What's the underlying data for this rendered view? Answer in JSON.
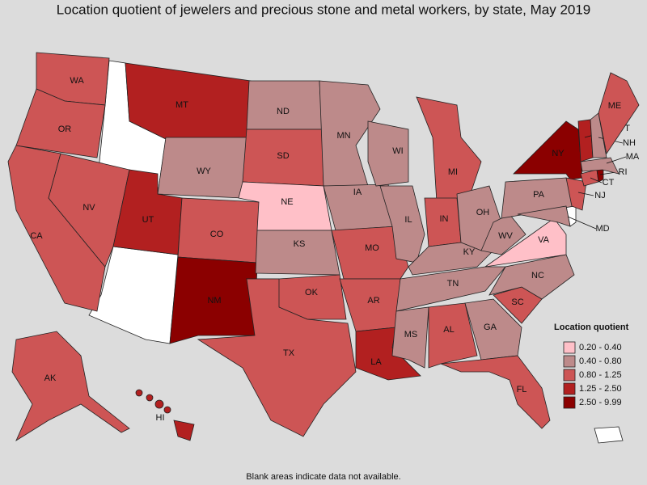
{
  "title": "Location quotient of jewelers and precious stone and metal workers, by state, May 2019",
  "footnote": "Blank areas indicate data not available.",
  "legend": {
    "title": "Location quotient",
    "items": [
      {
        "label": "0.20 - 0.40",
        "color": "#ffc0c8"
      },
      {
        "label": "0.40 - 0.80",
        "color": "#bd8a8a"
      },
      {
        "label": "0.80 - 1.25",
        "color": "#cd5555"
      },
      {
        "label": "1.25 - 2.50",
        "color": "#b22020"
      },
      {
        "label": "2.50 - 9.99",
        "color": "#8b0000"
      }
    ]
  },
  "states": [
    {
      "label": "WA",
      "color": "#cd5555"
    },
    {
      "label": "OR",
      "color": "#cd5555"
    },
    {
      "label": "CA",
      "color": "#cd5555"
    },
    {
      "label": "NV",
      "color": "#cd5555"
    },
    {
      "label": "MT",
      "color": "#b22020"
    },
    {
      "label": "WY",
      "color": "#bd8a8a"
    },
    {
      "label": "UT",
      "color": "#b22020"
    },
    {
      "label": "CO",
      "color": "#cd5555"
    },
    {
      "label": "NM",
      "color": "#8b0000"
    },
    {
      "label": "ND",
      "color": "#bd8a8a"
    },
    {
      "label": "SD",
      "color": "#cd5555"
    },
    {
      "label": "NE",
      "color": "#ffc0c8"
    },
    {
      "label": "KS",
      "color": "#bd8a8a"
    },
    {
      "label": "OK",
      "color": "#cd5555"
    },
    {
      "label": "TX",
      "color": "#cd5555"
    },
    {
      "label": "MN",
      "color": "#bd8a8a"
    },
    {
      "label": "IA",
      "color": "#bd8a8a"
    },
    {
      "label": "MO",
      "color": "#cd5555"
    },
    {
      "label": "AR",
      "color": "#cd5555"
    },
    {
      "label": "LA",
      "color": "#b22020"
    },
    {
      "label": "WI",
      "color": "#bd8a8a"
    },
    {
      "label": "IL",
      "color": "#bd8a8a"
    },
    {
      "label": "MI",
      "color": "#cd5555"
    },
    {
      "label": "IN",
      "color": "#cd5555"
    },
    {
      "label": "OH",
      "color": "#bd8a8a"
    },
    {
      "label": "KY",
      "color": "#bd8a8a"
    },
    {
      "label": "TN",
      "color": "#bd8a8a"
    },
    {
      "label": "MS",
      "color": "#bd8a8a"
    },
    {
      "label": "AL",
      "color": "#cd5555"
    },
    {
      "label": "GA",
      "color": "#bd8a8a"
    },
    {
      "label": "FL",
      "color": "#cd5555"
    },
    {
      "label": "SC",
      "color": "#cd5555"
    },
    {
      "label": "NC",
      "color": "#bd8a8a"
    },
    {
      "label": "VA",
      "color": "#ffc0c8"
    },
    {
      "label": "WV",
      "color": "#bd8a8a"
    },
    {
      "label": "PA",
      "color": "#bd8a8a"
    },
    {
      "label": "NY",
      "color": "#8b0000"
    },
    {
      "label": "MD",
      "color": "#bd8a8a"
    },
    {
      "label": "NJ",
      "color": "#cd5555"
    },
    {
      "label": "CT",
      "color": "#cd5555"
    },
    {
      "label": "RI",
      "color": "#8b0000"
    },
    {
      "label": "MA",
      "color": "#bd8a8a"
    },
    {
      "label": "VT",
      "color": "#b22020"
    },
    {
      "label": "NH",
      "color": "#bd8a8a"
    },
    {
      "label": "ME",
      "color": "#cd5555"
    },
    {
      "label": "AK",
      "color": "#cd5555"
    },
    {
      "label": "HI",
      "color": "#b22020"
    }
  ]
}
